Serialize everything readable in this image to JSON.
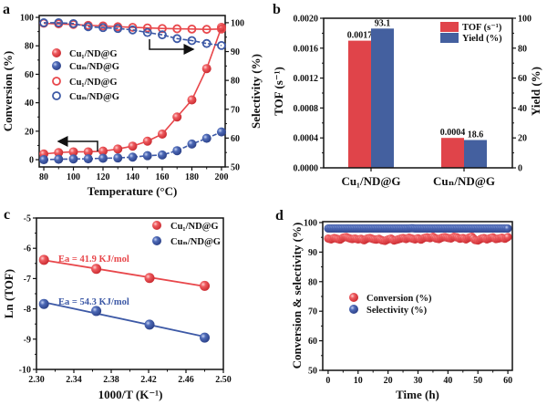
{
  "colors": {
    "red": "#e8474b",
    "blue": "#3d59a6",
    "red_bar": "#e0444a",
    "blue_bar": "#44609f",
    "axis": "#111111"
  },
  "chart_data": [
    {
      "panel": "a",
      "type": "line",
      "xlabel": "Temperature (°C)",
      "ylabel": "Conversion (%)",
      "y2label": "Selectivity (%)",
      "xticks": [
        "80",
        "100",
        "120",
        "140",
        "160",
        "180",
        "200"
      ],
      "yticks": [
        "0",
        "20",
        "40",
        "60",
        "80",
        "100"
      ],
      "y2ticks": [
        "50",
        "60",
        "70",
        "80",
        "90",
        "100"
      ],
      "xlim": [
        76.9,
        202.5
      ],
      "ylim": [
        -5.1,
        101.3
      ],
      "y2lim": [
        50,
        102.5
      ],
      "x": [
        80,
        90,
        100,
        110,
        120,
        130,
        140,
        150,
        160,
        170,
        180,
        190,
        200
      ],
      "series": [
        {
          "name": "Cu₁/ND@G",
          "axis": "left",
          "marker": "filled",
          "color": "red",
          "values": [
            4,
            5,
            5.5,
            5.5,
            6,
            7.5,
            9.5,
            13,
            18,
            30,
            42,
            64,
            93
          ]
        },
        {
          "name": "Cuₙ/ND@G",
          "axis": "left",
          "marker": "filled",
          "color": "blue",
          "values": [
            0,
            0.3,
            0.5,
            0.6,
            1,
            1.2,
            1.8,
            2.8,
            3.3,
            6.3,
            11,
            15,
            19.5
          ]
        },
        {
          "name": "Cu₁/ND@G",
          "axis": "right",
          "marker": "open",
          "color": "red",
          "values": [
            99.8,
            99.6,
            99.4,
            99.1,
            98.9,
            98.6,
            98.4,
            98.2,
            98.0,
            97.9,
            97.8,
            97.7,
            97.8
          ]
        },
        {
          "name": "Cuₙ/ND@G",
          "axis": "right",
          "marker": "open",
          "color": "blue",
          "values": [
            100,
            100,
            99.7,
            98.6,
            98.3,
            98.0,
            97.5,
            96.6,
            95.8,
            94.5,
            93.8,
            92.8,
            92.1
          ]
        }
      ],
      "legend": "center-left",
      "annotations": [
        "arrow pointing left to conversion axis",
        "arrow pointing right to selectivity axis"
      ]
    },
    {
      "panel": "b",
      "type": "bar",
      "ylabel": "TOF (s⁻¹)",
      "y2label": "Yield (%)",
      "categories": [
        "Cu₁/ND@G",
        "Cuₙ/ND@G"
      ],
      "yticks": [
        "0.0000",
        "0.0004",
        "0.0008",
        "0.0012",
        "0.0016",
        "0.0020"
      ],
      "y2ticks": [
        "0",
        "20",
        "40",
        "60",
        "80",
        "100"
      ],
      "ylim": [
        0,
        0.002
      ],
      "y2lim": [
        0,
        100
      ],
      "series": [
        {
          "name": "TOF (s⁻¹)",
          "axis": "left",
          "color": "red_bar",
          "values": [
            0.0017,
            0.0004
          ],
          "labels": [
            "0.0017",
            "0.0004"
          ]
        },
        {
          "name": "Yield (%)",
          "axis": "right",
          "color": "blue_bar",
          "values": [
            93.1,
            18.6
          ],
          "labels": [
            "93.1",
            "18.6"
          ]
        }
      ],
      "legend": "top-right"
    },
    {
      "panel": "c",
      "type": "scatter",
      "xlabel": "1000/T (K⁻¹)",
      "ylabel": "Ln (TOF)",
      "xticks": [
        "2.30",
        "2.34",
        "2.38",
        "2.42",
        "2.46",
        "2.50"
      ],
      "yticks": [
        "-10",
        "-9",
        "-8",
        "-7",
        "-6",
        "-5"
      ],
      "xlim": [
        2.3,
        2.5
      ],
      "ylim": [
        -10,
        -5
      ],
      "series": [
        {
          "name": "Cu₁/ND@G",
          "color": "red",
          "x": [
            2.308,
            2.364,
            2.421,
            2.48
          ],
          "values": [
            -6.38,
            -6.68,
            -6.98,
            -7.24
          ],
          "fit": true,
          "annotation": "Ea = 41.9 KJ/mol"
        },
        {
          "name": "Cuₙ/ND@G",
          "color": "blue",
          "x": [
            2.308,
            2.364,
            2.421,
            2.48
          ],
          "values": [
            -7.84,
            -8.07,
            -8.52,
            -8.95
          ],
          "fit": true,
          "annotation": "Ea = 54.3 KJ/mol"
        }
      ],
      "legend": "top-right"
    },
    {
      "panel": "d",
      "type": "scatter",
      "xlabel": "Time (h)",
      "ylabel": "Conversion & selectivity (%)",
      "xticks": [
        "0",
        "10",
        "20",
        "30",
        "40",
        "50",
        "60"
      ],
      "yticks": [
        "50",
        "60",
        "70",
        "80",
        "90",
        "100"
      ],
      "xlim": [
        -1.8,
        61.5
      ],
      "ylim": [
        50,
        100.3
      ],
      "x": [
        0,
        1,
        2,
        3,
        4,
        5,
        6,
        7,
        8,
        9,
        10,
        11,
        12,
        13,
        14,
        15,
        16,
        17,
        18,
        19,
        20,
        21,
        22,
        23,
        24,
        25,
        26,
        27,
        28,
        29,
        30,
        31,
        32,
        33,
        34,
        35,
        36,
        37,
        38,
        39,
        40,
        41,
        42,
        43,
        44,
        45,
        46,
        47,
        48,
        49,
        50,
        51,
        52,
        53,
        54,
        55,
        56,
        57,
        58,
        59,
        60
      ],
      "series": [
        {
          "name": "Conversion (%)",
          "color": "red",
          "values": [
            94.6,
            94.3,
            94.8,
            94.5,
            94.2,
            94.9,
            95.1,
            94.7,
            94.4,
            94.6,
            94.3,
            94.5,
            94.0,
            94.6,
            94.8,
            94.4,
            94.2,
            94.5,
            94.0,
            93.8,
            94.3,
            94.6,
            93.9,
            94.2,
            94.5,
            94.8,
            94.4,
            94.9,
            94.6,
            94.3,
            94.7,
            94.2,
            94.8,
            95.0,
            94.7,
            95.2,
            94.6,
            94.4,
            94.9,
            95.1,
            94.8,
            94.6,
            95.2,
            95.0,
            94.5,
            94.8,
            94.3,
            94.9,
            95.2,
            94.1,
            93.9,
            94.5,
            94.8,
            94.3,
            94.7,
            95.0,
            94.4,
            94.6,
            94.9,
            94.5,
            95.1
          ]
        },
        {
          "name": "Selectivity (%)",
          "color": "blue",
          "values": [
            98,
            98,
            98,
            98,
            98,
            98,
            98,
            98,
            98,
            98,
            98,
            98,
            98,
            98,
            98,
            98,
            98,
            98,
            98,
            98,
            98,
            98,
            98,
            98,
            98,
            98,
            98,
            98,
            98.1,
            98,
            98,
            98,
            98,
            98,
            98,
            98,
            98,
            98,
            98,
            98,
            98,
            98,
            98,
            98,
            98,
            98,
            98,
            98,
            98,
            98,
            98,
            98,
            98,
            98,
            98,
            98,
            98,
            98,
            98,
            98,
            98
          ]
        }
      ],
      "legend": "center-left"
    }
  ]
}
